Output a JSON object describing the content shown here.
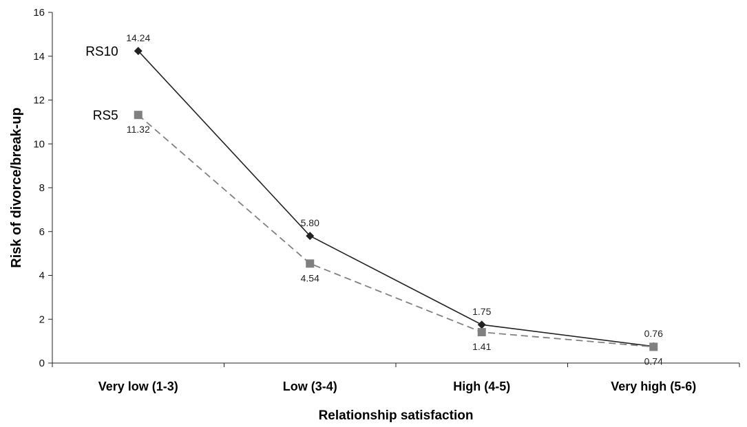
{
  "chart_data": {
    "type": "line",
    "title": "",
    "xlabel": "Relationship satisfaction",
    "ylabel": "Risk of divorce/break-up",
    "categories": [
      "Very low (1-3)",
      "Low (3-4)",
      "High (4-5)",
      "Very high (5-6)"
    ],
    "ylim": [
      0,
      16
    ],
    "yticks": [
      "0",
      "2",
      "4",
      "6",
      "8",
      "10",
      "12",
      "14",
      "16"
    ],
    "grid": false,
    "legend": "inline labels at left",
    "series": [
      {
        "name": "RS10",
        "values": [
          14.24,
          5.8,
          1.75,
          0.76
        ],
        "labels": [
          "14.24",
          "5.80",
          "1.75",
          "0.76"
        ],
        "line_style": "solid",
        "marker": "diamond",
        "color": "#222222"
      },
      {
        "name": "RS5",
        "values": [
          11.32,
          4.54,
          1.41,
          0.74
        ],
        "labels": [
          "11.32",
          "4.54",
          "1.41",
          "0.74"
        ],
        "line_style": "dashed",
        "marker": "square",
        "color": "#808080"
      }
    ]
  }
}
